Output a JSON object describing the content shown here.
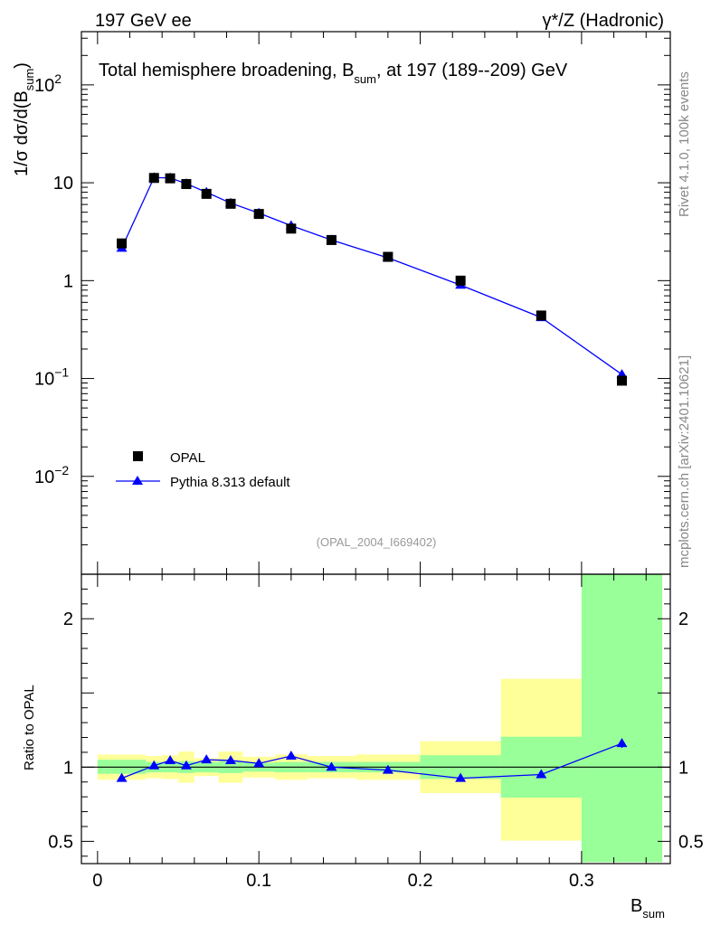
{
  "header": {
    "left": "197 GeV ee",
    "right": "γ*/Z (Hadronic)"
  },
  "side": {
    "rivet": "Rivet 4.1.0,  100k events",
    "mcplots": "mcplots.cern.ch [arXiv:2401.10621]"
  },
  "chart_data": {
    "type": "line",
    "title": "Total hemisphere broadening, B",
    "title_sub": "sum",
    "title_tail": ", at 197 (189--209) GeV",
    "analysis_id": "(OPAL_2004_I669402)",
    "ylabel": {
      "prefix": "1/σ  dσ/d(B",
      "sub": "sum",
      "suffix": ")"
    },
    "xlabel": {
      "main": "B",
      "sub": "sum"
    },
    "xlim": [
      -0.01,
      0.355
    ],
    "ylim": [
      0.001,
      350
    ],
    "ratio_ylim": [
      0.35,
      2.3
    ],
    "ratio_ylabel": "Ratio to OPAL",
    "y_ticks": [
      {
        "value": 100,
        "label": "10",
        "sup": "2"
      },
      {
        "value": 10,
        "label": "10",
        "sup": ""
      },
      {
        "value": 1,
        "label": "1",
        "sup": ""
      },
      {
        "value": 0.1,
        "label": "10",
        "sup": "−1"
      },
      {
        "value": 0.01,
        "label": "10",
        "sup": "−2"
      }
    ],
    "x_ticks": [
      {
        "value": 0,
        "label": "0"
      },
      {
        "value": 0.1,
        "label": "0.1"
      },
      {
        "value": 0.2,
        "label": "0.2"
      },
      {
        "value": 0.3,
        "label": "0.3"
      }
    ],
    "ratio_ticks": [
      {
        "value": 0.5,
        "label": "0.5"
      },
      {
        "value": 1,
        "label": "1"
      },
      {
        "value": 2,
        "label": "2"
      }
    ],
    "legend": {
      "data_label": "OPAL",
      "mc_label": "Pythia 8.313 default",
      "position": "bottom-left"
    },
    "colors": {
      "data": "#000000",
      "mc": "#0000ff",
      "band_inner": "#99ff99",
      "band_outer": "#ffff99"
    },
    "bins": [
      [
        0.0,
        0.03
      ],
      [
        0.03,
        0.04
      ],
      [
        0.04,
        0.05
      ],
      [
        0.05,
        0.06
      ],
      [
        0.06,
        0.075
      ],
      [
        0.075,
        0.09
      ],
      [
        0.09,
        0.11
      ],
      [
        0.11,
        0.13
      ],
      [
        0.13,
        0.16
      ],
      [
        0.16,
        0.2
      ],
      [
        0.2,
        0.25
      ],
      [
        0.25,
        0.3
      ],
      [
        0.3,
        0.35
      ]
    ],
    "x": [
      0.015,
      0.035,
      0.045,
      0.055,
      0.0675,
      0.0825,
      0.1,
      0.12,
      0.145,
      0.18,
      0.225,
      0.275,
      0.325
    ],
    "series": [
      {
        "name": "OPAL",
        "values": [
          2.4,
          11.2,
          11.1,
          9.7,
          7.7,
          6.1,
          4.8,
          3.4,
          2.6,
          1.75,
          1.0,
          0.44,
          0.095
        ]
      },
      {
        "name": "Pythia 8.313 default",
        "values": [
          2.15,
          11.3,
          11.2,
          9.8,
          8.0,
          6.2,
          4.9,
          3.65,
          2.6,
          1.71,
          0.9,
          0.42,
          0.11
        ],
        "ratio": [
          0.925,
          1.01,
          1.045,
          1.01,
          1.05,
          1.045,
          1.025,
          1.075,
          1.0,
          0.98,
          0.925,
          0.95,
          1.16
        ],
        "ratio_err": [
          0.0,
          0.0,
          0.0,
          0.0,
          0.0,
          0.0,
          0.0,
          0.0,
          0.0,
          0.0,
          0.0,
          0.0,
          0.03
        ]
      }
    ],
    "ratio_band": {
      "inner": [
        [
          0.955,
          1.05
        ],
        [
          0.965,
          1.035
        ],
        [
          0.965,
          1.035
        ],
        [
          0.96,
          1.04
        ],
        [
          0.965,
          1.035
        ],
        [
          0.96,
          1.04
        ],
        [
          0.97,
          1.03
        ],
        [
          0.965,
          1.035
        ],
        [
          0.965,
          1.035
        ],
        [
          0.965,
          1.035
        ],
        [
          0.92,
          1.08
        ],
        [
          0.795,
          1.205
        ],
        [
          0.36,
          2.3
        ]
      ],
      "outer": [
        [
          0.915,
          1.085
        ],
        [
          0.925,
          1.075
        ],
        [
          0.92,
          1.08
        ],
        [
          0.895,
          1.105
        ],
        [
          0.94,
          1.06
        ],
        [
          0.895,
          1.105
        ],
        [
          0.93,
          1.07
        ],
        [
          0.915,
          1.085
        ],
        [
          0.925,
          1.075
        ],
        [
          0.915,
          1.085
        ],
        [
          0.825,
          1.175
        ],
        [
          0.505,
          1.595
        ],
        [
          0.36,
          2.3
        ]
      ]
    }
  }
}
